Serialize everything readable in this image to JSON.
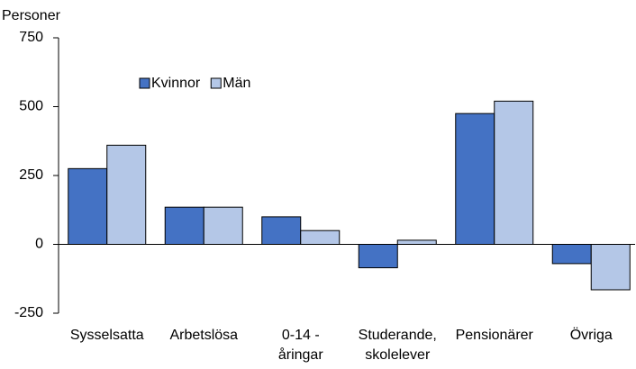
{
  "chart_data": {
    "type": "bar",
    "y_label": "Personer",
    "categories": [
      "Sysselsatta",
      "Arbetslösa",
      "0-14 -\nåringar",
      "Studerande,\nskolelever",
      "Pensionärer",
      "Övriga"
    ],
    "series": [
      {
        "name": "Kvinnor",
        "color": "#4472c4",
        "values": [
          275,
          135,
          100,
          -85,
          475,
          -70
        ]
      },
      {
        "name": "Män",
        "color": "#b4c7e7",
        "values": [
          360,
          135,
          50,
          15,
          520,
          -165
        ]
      }
    ],
    "ylim": [
      -250,
      750
    ],
    "yticks": [
      -250,
      0,
      250,
      500,
      750
    ],
    "grid": false
  }
}
